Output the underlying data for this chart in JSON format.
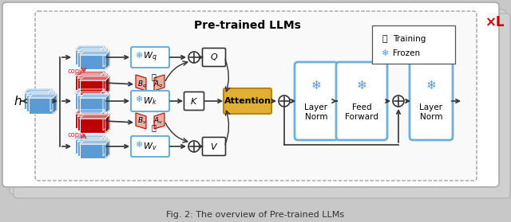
{
  "title": "Pre-trained LLMs",
  "caption": "Fig. 2: The overview of Pre-trained LLMs",
  "blue": "#5B9BD5",
  "blue_dark": "#2E75B6",
  "blue_light": "#9DC3E6",
  "red": "#C00000",
  "red_dark": "#7B0000",
  "red_light": "#FF8080",
  "gold": "#E2AF35",
  "gold_dark": "#B8860B",
  "lb": "#6FB0D8",
  "xl_color": "#CC0000",
  "copy_color": "#CC3333",
  "legend_training": "Training",
  "legend_frozen": "Frozen",
  "bg_outer": "#c8c8c8",
  "bg_page": "#e8e8e8",
  "bg_main": "#f8f8f8"
}
